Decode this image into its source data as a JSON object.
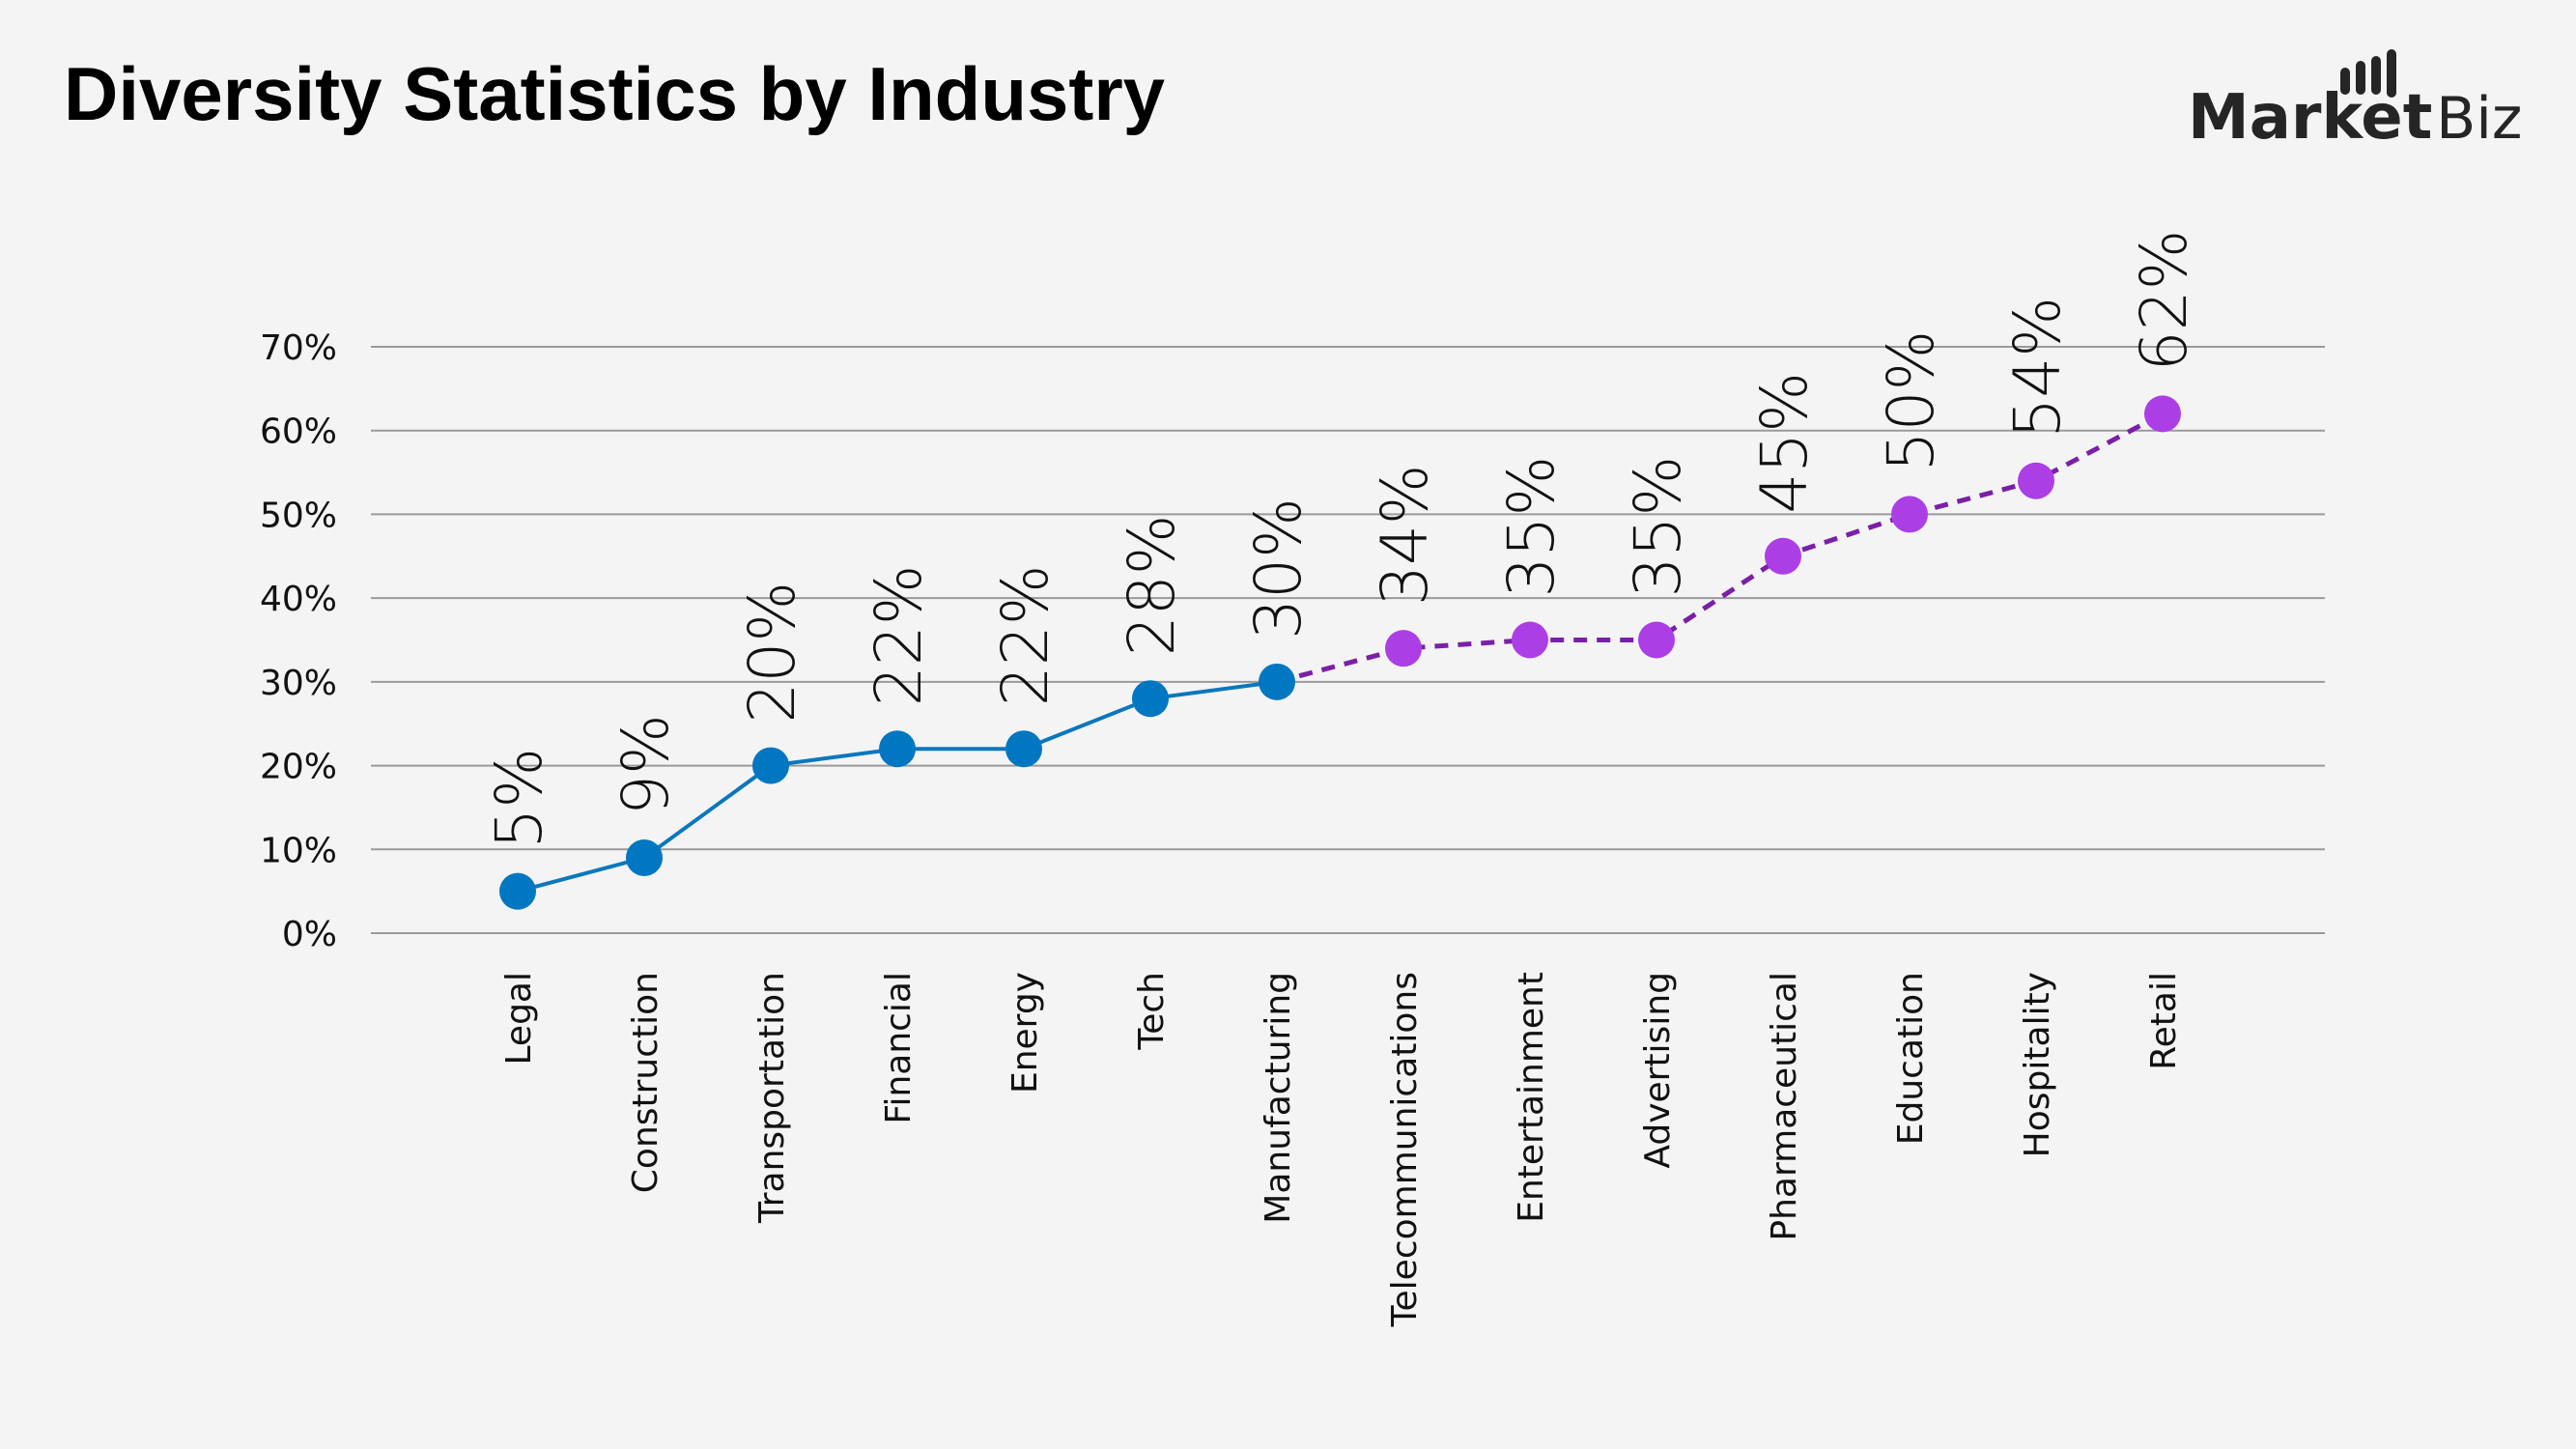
{
  "title": "Diversity Statistics by Industry",
  "logo": {
    "text_bold": "Market",
    "text_light": ".Biz"
  },
  "chart_data": {
    "type": "line",
    "title": "Diversity Statistics by Industry",
    "xlabel": "",
    "ylabel": "",
    "ylim": [
      0,
      70
    ],
    "yticks": [
      "0%",
      "10%",
      "20%",
      "30%",
      "40%",
      "50%",
      "60%",
      "70%"
    ],
    "grid": true,
    "categories": [
      "Legal",
      "Construction",
      "Transportation",
      "Financial",
      "Energy",
      "Tech",
      "Manufacturing",
      "Telecommunications",
      "Entertainment",
      "Advertising",
      "Pharmaceutical",
      "Education",
      "Hospitality",
      "Retail"
    ],
    "values": [
      5,
      9,
      20,
      22,
      22,
      28,
      30,
      34,
      35,
      35,
      45,
      50,
      54,
      62
    ],
    "data_labels": [
      "5%",
      "9%",
      "20%",
      "22%",
      "22%",
      "28%",
      "30%",
      "34%",
      "35%",
      "35%",
      "45%",
      "50%",
      "54%",
      "62%"
    ],
    "segments": [
      {
        "from": 0,
        "to": 6,
        "style": "solid",
        "line_color": "#0a77bd",
        "marker_color": "#0077c0"
      },
      {
        "from": 6,
        "to": 13,
        "style": "dashed",
        "line_color": "#7a1fa8",
        "marker_color": "#ac3ee6"
      }
    ]
  }
}
